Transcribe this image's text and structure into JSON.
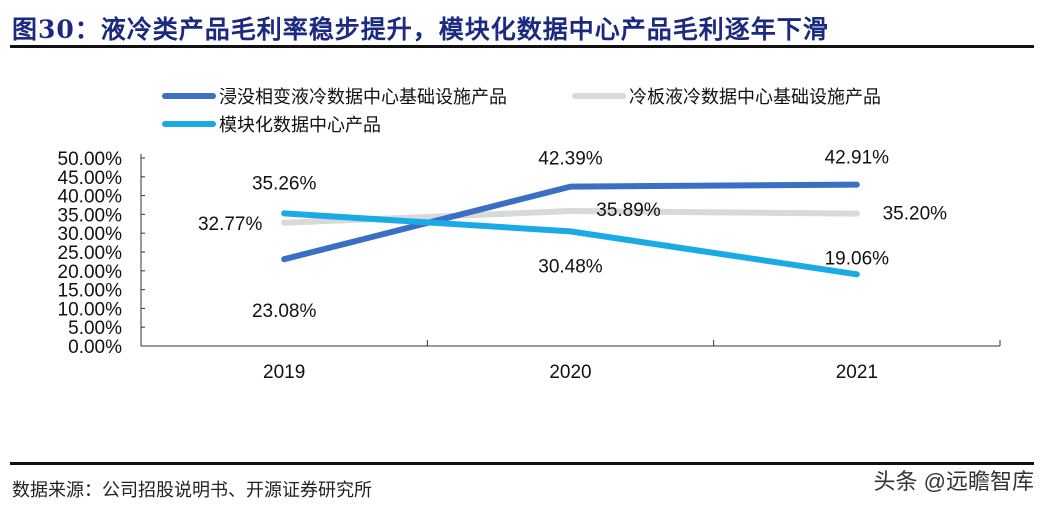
{
  "title": "图30：液冷类产品毛利率稳步提升，模块化数据中心产品毛利逐年下滑",
  "source": "数据来源：公司招股说明书、开源证券研究所",
  "watermark": "头条 @远瞻智库",
  "chart_data": {
    "type": "line",
    "categories": [
      "2019",
      "2020",
      "2021"
    ],
    "ylim": [
      0,
      50
    ],
    "yticks": [
      "0.00%",
      "5.00%",
      "10.00%",
      "15.00%",
      "20.00%",
      "25.00%",
      "30.00%",
      "35.00%",
      "40.00%",
      "45.00%",
      "50.00%"
    ],
    "legend_placement": "top",
    "grid": false,
    "series": [
      {
        "name": "浸没相变液冷数据中心基础设施产品",
        "color": "#3a6fc4",
        "values": [
          23.08,
          42.39,
          42.91
        ],
        "labels": [
          "23.08%",
          "42.39%",
          "42.91%"
        ]
      },
      {
        "name": "冷板液冷数据中心基础设施产品",
        "color": "#d9d9d9",
        "values": [
          32.77,
          35.89,
          35.2
        ],
        "labels": [
          "32.77%",
          "35.89%",
          "35.20%"
        ]
      },
      {
        "name": "模块化数据中心产品",
        "color": "#1aabe6",
        "values": [
          35.26,
          30.48,
          19.06
        ],
        "labels": [
          "35.26%",
          "30.48%",
          "19.06%"
        ]
      }
    ]
  }
}
